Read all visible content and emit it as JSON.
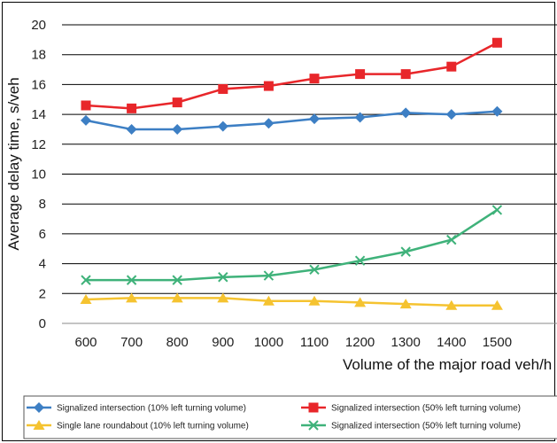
{
  "chart_data": {
    "type": "line",
    "xlabel": "Volume of the major road veh/h",
    "ylabel": "Average delay time, s/veh",
    "x": [
      600,
      700,
      800,
      900,
      1000,
      1100,
      1200,
      1300,
      1400,
      1500
    ],
    "ylim": [
      0,
      20
    ],
    "yticks": [
      0,
      2,
      4,
      6,
      8,
      10,
      12,
      14,
      16,
      18,
      20
    ],
    "grid": true,
    "legend_position": "bottom",
    "series": [
      {
        "name": "Signalized intersection (10% left turning volume)",
        "color": "#3d7fc4",
        "marker": "diamond",
        "values": [
          13.6,
          13.0,
          13.0,
          13.2,
          13.4,
          13.7,
          13.8,
          14.1,
          14.0,
          14.2
        ]
      },
      {
        "name": "Signalized intersection (50% left turning volume)",
        "color": "#e8262a",
        "marker": "square",
        "values": [
          14.6,
          14.4,
          14.8,
          15.7,
          15.9,
          16.4,
          16.7,
          16.7,
          17.2,
          18.8
        ]
      },
      {
        "name": "Single lane roundabout (10% left turning volume)",
        "color": "#f5c330",
        "marker": "triangle",
        "values": [
          1.6,
          1.7,
          1.7,
          1.7,
          1.5,
          1.5,
          1.4,
          1.3,
          1.2,
          1.2
        ]
      },
      {
        "name": "Signalized intersection (50% left turning volume)",
        "color": "#3fb27a",
        "marker": "x",
        "values": [
          2.9,
          2.9,
          2.9,
          3.1,
          3.2,
          3.6,
          4.2,
          4.8,
          5.6,
          7.6
        ]
      }
    ]
  }
}
